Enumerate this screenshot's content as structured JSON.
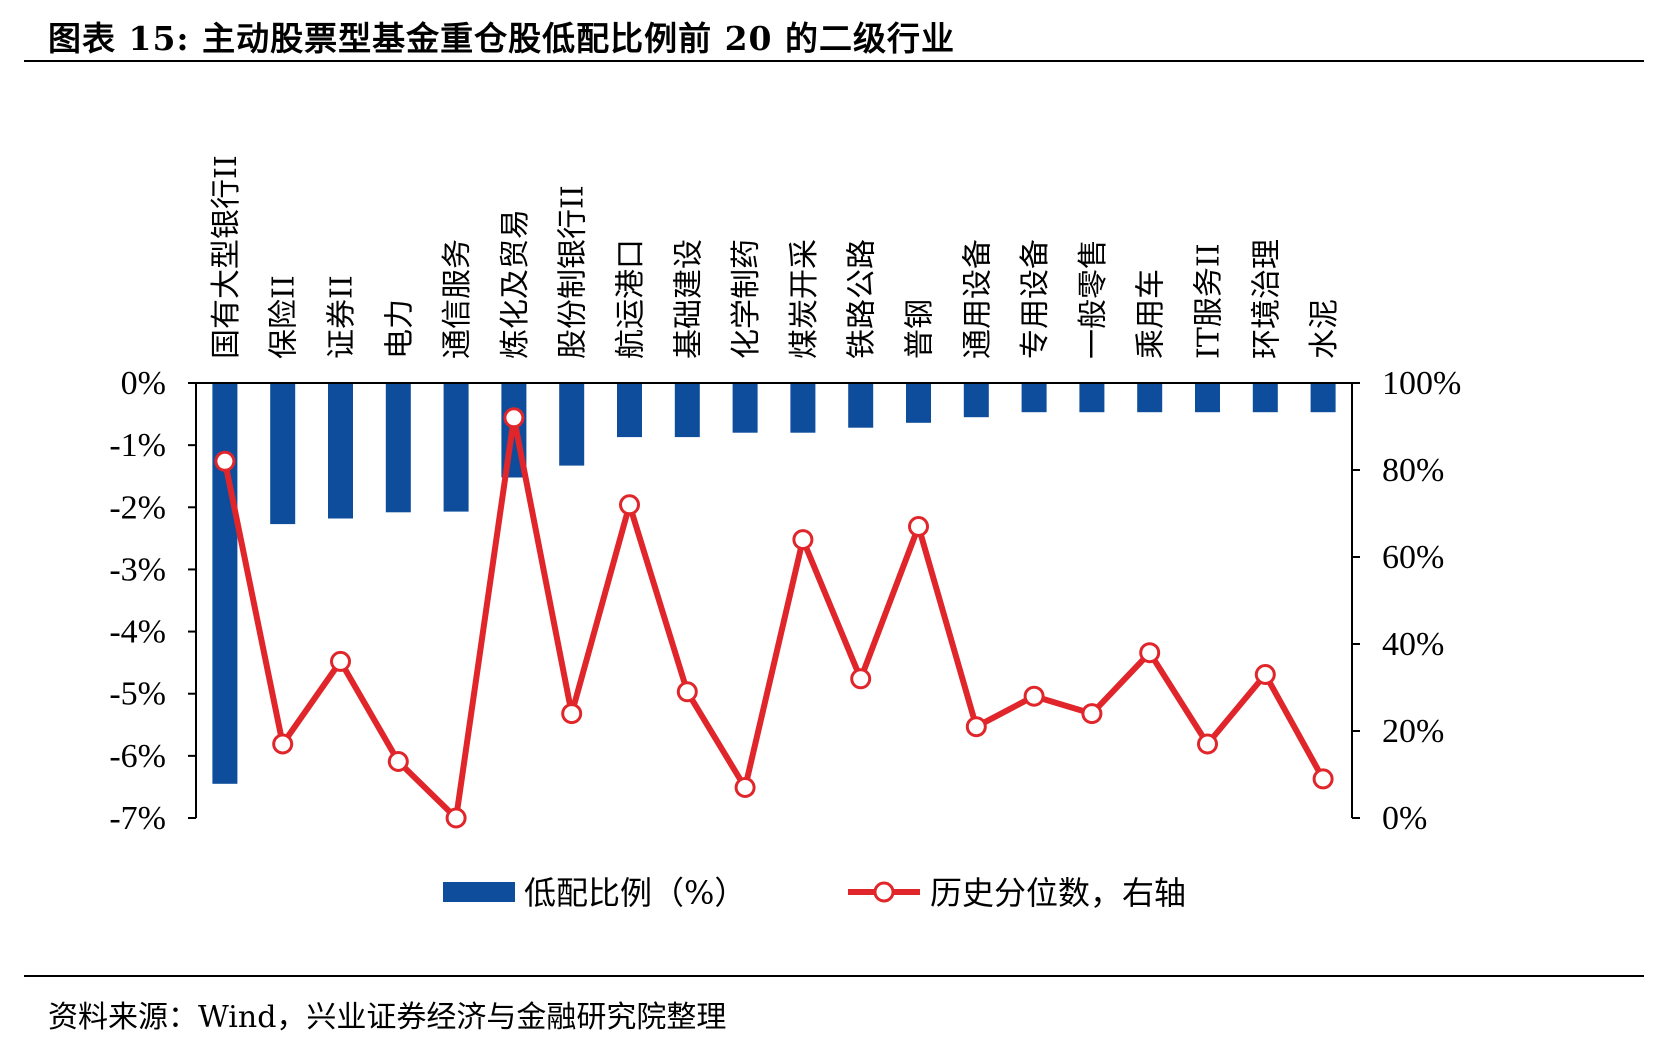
{
  "title": "图表 15:  主动股票型基金重仓股低配比例前 20 的二级行业",
  "source": "资料来源：Wind，兴业证券经济与金融研究院整理",
  "colors": {
    "bar": "#0e4d9c",
    "line": "#e0262a",
    "marker_fill": "#ffffff",
    "axis": "#000000"
  },
  "chart_data": {
    "type": "bar+line",
    "categories": [
      "国有大型银行II",
      "保险II",
      "证券II",
      "电力",
      "通信服务",
      "炼化及贸易",
      "股份制银行II",
      "航运港口",
      "基础建设",
      "化学制药",
      "煤炭开采",
      "铁路公路",
      "普钢",
      "通用设备",
      "专用设备",
      "一般零售",
      "乘用车",
      "IT服务II",
      "环境治理",
      "水泥"
    ],
    "series": [
      {
        "name": "低配比例（%）",
        "type": "bar",
        "axis": "left",
        "values": [
          -6.45,
          -2.27,
          -2.18,
          -2.08,
          -2.07,
          -1.52,
          -1.33,
          -0.87,
          -0.87,
          -0.8,
          -0.8,
          -0.72,
          -0.64,
          -0.55,
          -0.47,
          -0.47,
          -0.47,
          -0.47,
          -0.47,
          -0.47
        ]
      },
      {
        "name": "历史分位数，右轴",
        "type": "line",
        "axis": "right",
        "values": [
          82,
          17,
          36,
          13,
          0,
          92,
          24,
          72,
          29,
          7,
          64,
          32,
          67,
          21,
          28,
          24,
          38,
          17,
          33,
          9
        ]
      }
    ],
    "left_axis": {
      "ylim": [
        -7,
        0
      ],
      "ticks": [
        "0%",
        "-1%",
        "-2%",
        "-3%",
        "-4%",
        "-5%",
        "-6%",
        "-7%"
      ]
    },
    "right_axis": {
      "ylim": [
        0,
        100
      ],
      "ticks": [
        "100%",
        "80%",
        "60%",
        "40%",
        "20%",
        "0%"
      ]
    },
    "legend": {
      "position": "bottom",
      "bar_label": "低配比例（%）",
      "line_label": "历史分位数，右轴"
    }
  }
}
